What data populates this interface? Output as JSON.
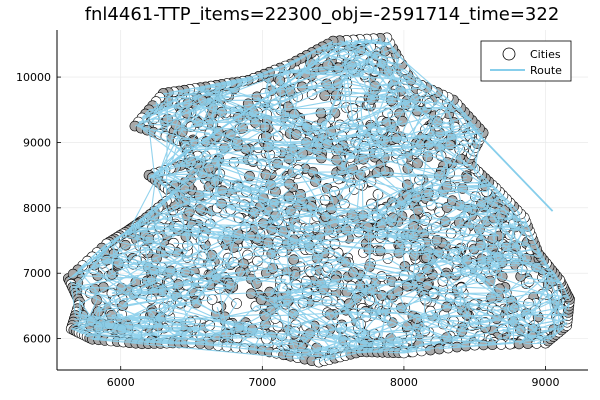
{
  "chart_data": {
    "type": "scatter",
    "title": "fnl4461-TTP_items=22300_obj=-2591714_time=322",
    "xlabel": "",
    "ylabel": "",
    "xlim": [
      5550,
      9300
    ],
    "ylim": [
      5520,
      10720
    ],
    "xticks": [
      6000,
      7000,
      8000,
      9000
    ],
    "yticks": [
      6000,
      7000,
      8000,
      9000,
      10000
    ],
    "grid": true,
    "legend_position": "top-right",
    "series": [
      {
        "name": "Cities",
        "kind": "scatter",
        "marker": "circle",
        "fill": "#ffffff",
        "stroke": "#000000"
      },
      {
        "name": "Route",
        "kind": "line",
        "color": "#87CEEB"
      }
    ],
    "hull": [
      [
        5630,
        6920
      ],
      [
        5710,
        6560
      ],
      [
        5650,
        6150
      ],
      [
        5800,
        5990
      ],
      [
        6150,
        5920
      ],
      [
        6500,
        5940
      ],
      [
        7000,
        5820
      ],
      [
        7400,
        5640
      ],
      [
        7700,
        5800
      ],
      [
        8000,
        5780
      ],
      [
        8500,
        5900
      ],
      [
        9000,
        5930
      ],
      [
        9150,
        6200
      ],
      [
        9170,
        6600
      ],
      [
        9100,
        6900
      ],
      [
        8950,
        7300
      ],
      [
        8850,
        7850
      ],
      [
        8650,
        8300
      ],
      [
        8450,
        8700
      ],
      [
        8560,
        9150
      ],
      [
        8350,
        9650
      ],
      [
        8050,
        9950
      ],
      [
        7880,
        10600
      ],
      [
        7500,
        10550
      ],
      [
        7200,
        10200
      ],
      [
        6900,
        9950
      ],
      [
        6600,
        9850
      ],
      [
        6300,
        9750
      ],
      [
        6100,
        9250
      ],
      [
        6450,
        9000
      ],
      [
        6500,
        8700
      ],
      [
        6200,
        8500
      ],
      [
        6380,
        8200
      ],
      [
        6150,
        7800
      ],
      [
        6050,
        7650
      ],
      [
        5900,
        7450
      ]
    ],
    "gray_fraction": 0.55
  }
}
